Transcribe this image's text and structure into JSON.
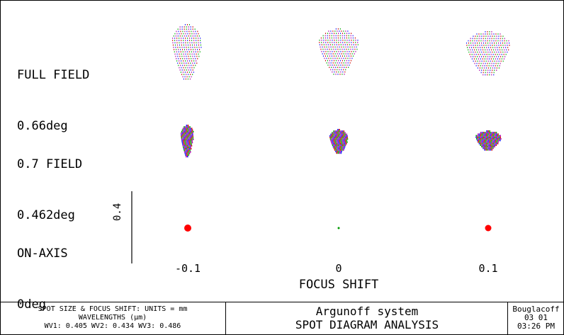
{
  "rows": [
    {
      "title": "FULL FIELD",
      "angle": "0.66deg"
    },
    {
      "title": "0.7 FIELD",
      "angle": "0.462deg"
    },
    {
      "title": "ON-AXIS",
      "angle": "0deg"
    }
  ],
  "focus_ticks": [
    "-0.1",
    "0",
    "0.1"
  ],
  "focus_axis_title": "FOCUS SHIFT",
  "scale_label": "0.4",
  "footer": {
    "units_line": "SPOT SIZE & FOCUS SHIFT: UNITS = mm",
    "wavelengths_title": "WAVELENGTHS (μm)",
    "wavelengths_line": "WV1: 0.405 WV2: 0.434 WV3: 0.486",
    "system_name": "Argunoff system",
    "analysis_title": "SPOT DIAGRAM ANALYSIS",
    "author": "Bouglacoff",
    "date": "03 01",
    "time": "03:26 PM"
  },
  "spot_colors": [
    "#1a1aff",
    "#cc0000",
    "#00aa00",
    "#aa00aa"
  ],
  "onaxis_spot_color": "#ff0000"
}
